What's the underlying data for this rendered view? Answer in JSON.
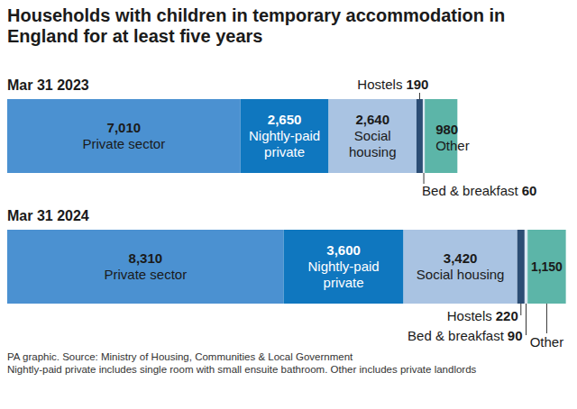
{
  "chart_data": {
    "type": "bar",
    "orientation": "horizontal",
    "stacked": true,
    "data_labels": true,
    "tick_labels": "y",
    "title": "Households with children in temporary accommodation in England for at least five years",
    "footnotes": [
      "PA graphic. Source: Ministry of Housing, Communities & Local Government",
      "Nightly-paid private includes single room with small ensuite bathroom. Other includes private landlords"
    ],
    "categories": [
      "Mar 31 2023",
      "Mar 31 2024"
    ],
    "xlim": [
      0,
      16800
    ],
    "series": [
      {
        "name": "Private sector",
        "color": "#4b91d1",
        "values": [
          7010,
          8310
        ],
        "value_labels": [
          "7,010",
          "8,310"
        ]
      },
      {
        "name": "Nightly-paid private",
        "color": "#0f77bf",
        "values": [
          2650,
          3600
        ],
        "value_labels": [
          "2,650",
          "3,600"
        ]
      },
      {
        "name": "Social housing",
        "color": "#a9c3e2",
        "values": [
          2640,
          3420
        ],
        "value_labels": [
          "2,640",
          "3,420"
        ]
      },
      {
        "name": "Hostels",
        "color": "#2c4d74",
        "values": [
          190,
          220
        ],
        "value_labels": [
          "190",
          "220"
        ]
      },
      {
        "name": "Bed & breakfast",
        "color": "#dbe7f2",
        "values": [
          60,
          90
        ],
        "value_labels": [
          "60",
          "90"
        ]
      },
      {
        "name": "Other",
        "color": "#5cb5a8",
        "values": [
          980,
          1150
        ],
        "value_labels": [
          "980",
          "1,150"
        ]
      }
    ]
  }
}
